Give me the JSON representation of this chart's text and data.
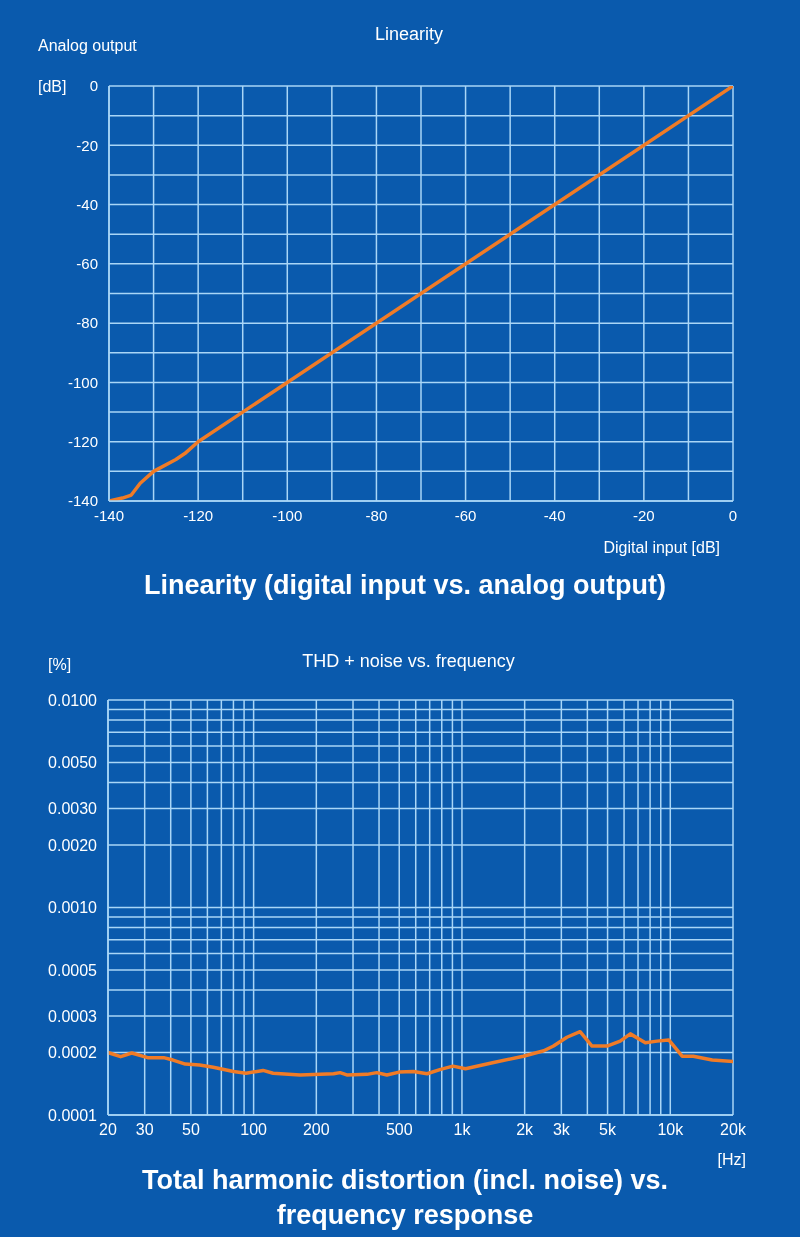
{
  "chart_data": [
    {
      "type": "line",
      "title": "Linearity (digital input vs. analog output)",
      "subtitle": "Linearity",
      "ylabel": "Analog output",
      "xlabel": "Digital input [dB]",
      "annotations": [
        "[dB]"
      ],
      "x": [
        -140,
        -137,
        -135,
        -133,
        -130,
        -125,
        -123,
        -120,
        0
      ],
      "values": [
        -140,
        -139,
        -138,
        -134,
        -130,
        -126,
        -124,
        -120,
        0
      ],
      "color": "#f07b26",
      "xlim": [
        -140,
        0
      ],
      "xticks": [
        -140,
        {
          "value": -130,
          "label": null
        },
        -120,
        {
          "value": -110,
          "label": null
        },
        -100,
        {
          "value": -90,
          "label": null
        },
        -80,
        {
          "value": -70,
          "label": null
        },
        -60,
        {
          "value": -50,
          "label": null
        },
        -40,
        {
          "value": -30,
          "label": null
        },
        -20,
        {
          "value": -10,
          "label": null
        },
        0
      ],
      "ylim": [
        -140,
        0
      ],
      "yticks": [
        -140,
        {
          "value": -130,
          "label": null
        },
        -120,
        {
          "value": -110,
          "label": null
        },
        -100,
        {
          "value": -90,
          "label": null
        },
        -80,
        {
          "value": -70,
          "label": null
        },
        -60,
        {
          "value": -50,
          "label": null
        },
        -40,
        {
          "value": -30,
          "label": null
        },
        -20,
        {
          "value": -10,
          "label": null
        },
        0
      ],
      "grid": true
    },
    {
      "type": "line",
      "title": "Total harmonic distortion (incl. noise) vs. frequency response",
      "subtitle": "THD + noise vs. frequency",
      "ylabel": "[%]",
      "xlabel": "[Hz]",
      "log": "xy",
      "x": [
        20,
        23,
        26,
        31,
        37,
        41,
        47,
        55,
        64,
        80,
        92,
        111,
        124,
        167,
        242,
        260,
        280,
        350,
        390,
        436,
        500,
        585,
        680,
        790,
        906,
        1040,
        1420,
        1970,
        2470,
        2750,
        3190,
        3690,
        4210,
        4970,
        5750,
        6430,
        7590,
        8640,
        9830,
        11400,
        12900,
        15900,
        20000
      ],
      "values": [
        0.0002,
        0.000191,
        0.000199,
        0.000189,
        0.000189,
        0.000184,
        0.000176,
        0.000174,
        0.00017,
        0.000162,
        0.000159,
        0.000164,
        0.000159,
        0.000156,
        0.000158,
        0.00016,
        0.000156,
        0.000157,
        0.00016,
        0.000156,
        0.000161,
        0.000162,
        0.000158,
        0.000166,
        0.000172,
        0.000167,
        0.000179,
        0.000192,
        0.000204,
        0.000215,
        0.000237,
        0.000252,
        0.000215,
        0.000215,
        0.000227,
        0.000246,
        0.000223,
        0.000227,
        0.00023,
        0.000192,
        0.000192,
        0.000184,
        0.000181
      ],
      "color": "#f07b26",
      "xlim": [
        20,
        20000
      ],
      "xticks": [
        20,
        30,
        {
          "value": 40,
          "label": null
        },
        50,
        {
          "value": 60,
          "label": null
        },
        {
          "value": 70,
          "label": null
        },
        {
          "value": 80,
          "label": null
        },
        {
          "value": 90,
          "label": null
        },
        100,
        200,
        {
          "value": 300,
          "label": null
        },
        {
          "value": 400,
          "label": null
        },
        500,
        {
          "value": 600,
          "label": null
        },
        {
          "value": 700,
          "label": null
        },
        {
          "value": 800,
          "label": null
        },
        {
          "value": 900,
          "label": null
        },
        {
          "value": 1000,
          "label": "1k"
        },
        {
          "value": 2000,
          "label": "2k"
        },
        {
          "value": 3000,
          "label": "3k"
        },
        {
          "value": 4000,
          "label": null
        },
        {
          "value": 5000,
          "label": "5k"
        },
        {
          "value": 6000,
          "label": null
        },
        {
          "value": 7000,
          "label": null
        },
        {
          "value": 8000,
          "label": null
        },
        {
          "value": 9000,
          "label": null
        },
        {
          "value": 10000,
          "label": "10k"
        },
        {
          "value": 20000,
          "label": "20k"
        }
      ],
      "ylim": [
        0.0001,
        0.01
      ],
      "yticks": [
        0.0001,
        0.0002,
        0.0003,
        {
          "value": 0.0004,
          "label": null
        },
        0.0005,
        {
          "value": 0.0006,
          "label": null
        },
        {
          "value": 0.0007,
          "label": null
        },
        {
          "value": 0.0008,
          "label": null
        },
        {
          "value": 0.0009,
          "label": null
        },
        {
          "value": 0.001,
          "label": "0.0010"
        },
        {
          "value": 0.002,
          "label": "0.0020"
        },
        {
          "value": 0.003,
          "label": "0.0030"
        },
        {
          "value": 0.004,
          "label": null
        },
        {
          "value": 0.005,
          "label": "0.0050"
        },
        {
          "value": 0.006,
          "label": null
        },
        {
          "value": 0.007,
          "label": null
        },
        {
          "value": 0.008,
          "label": null
        },
        {
          "value": 0.009,
          "label": null
        },
        {
          "value": 0.01,
          "label": "0.0100"
        }
      ],
      "grid": true
    }
  ]
}
